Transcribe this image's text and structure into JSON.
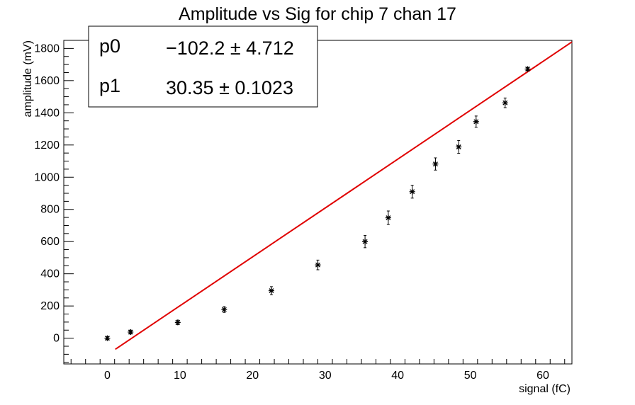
{
  "chart_data": {
    "type": "scatter",
    "title": "Amplitude vs Sig for chip 7 chan 17",
    "xlabel": "signal (fC)",
    "ylabel": "amplitude (mV)",
    "xlim": [
      -6,
      64
    ],
    "ylim": [
      -160,
      1850
    ],
    "x_ticks": [
      0,
      10,
      20,
      30,
      40,
      50,
      60
    ],
    "y_ticks": [
      0,
      200,
      400,
      600,
      800,
      1000,
      1200,
      1400,
      1600,
      1800
    ],
    "grid": false,
    "series": [
      {
        "type": "scatter",
        "marker": "star",
        "color": "#000000",
        "points": [
          {
            "x": 0.0,
            "y": 0,
            "err": 10
          },
          {
            "x": 3.2,
            "y": 38,
            "err": 12
          },
          {
            "x": 9.7,
            "y": 98,
            "err": 14
          },
          {
            "x": 16.1,
            "y": 178,
            "err": 18
          },
          {
            "x": 22.6,
            "y": 295,
            "err": 25
          },
          {
            "x": 29.0,
            "y": 455,
            "err": 30
          },
          {
            "x": 35.5,
            "y": 600,
            "err": 38
          },
          {
            "x": 38.7,
            "y": 748,
            "err": 42
          },
          {
            "x": 42.0,
            "y": 910,
            "err": 40
          },
          {
            "x": 45.2,
            "y": 1082,
            "err": 38
          },
          {
            "x": 48.4,
            "y": 1188,
            "err": 40
          },
          {
            "x": 50.8,
            "y": 1345,
            "err": 35
          },
          {
            "x": 54.8,
            "y": 1462,
            "err": 30
          },
          {
            "x": 57.9,
            "y": 1672,
            "err": 10
          }
        ]
      },
      {
        "type": "line",
        "color": "#e00000",
        "x_range": [
          1.1,
          64
        ],
        "fit": {
          "p0": -102.2,
          "p1": 30.35
        }
      }
    ],
    "stats_box": {
      "position": "top-left",
      "rows": [
        {
          "name": "p0",
          "value": "−102.2 ± 4.712"
        },
        {
          "name": "p1",
          "value": "30.35 ± 0.1023"
        }
      ]
    }
  }
}
